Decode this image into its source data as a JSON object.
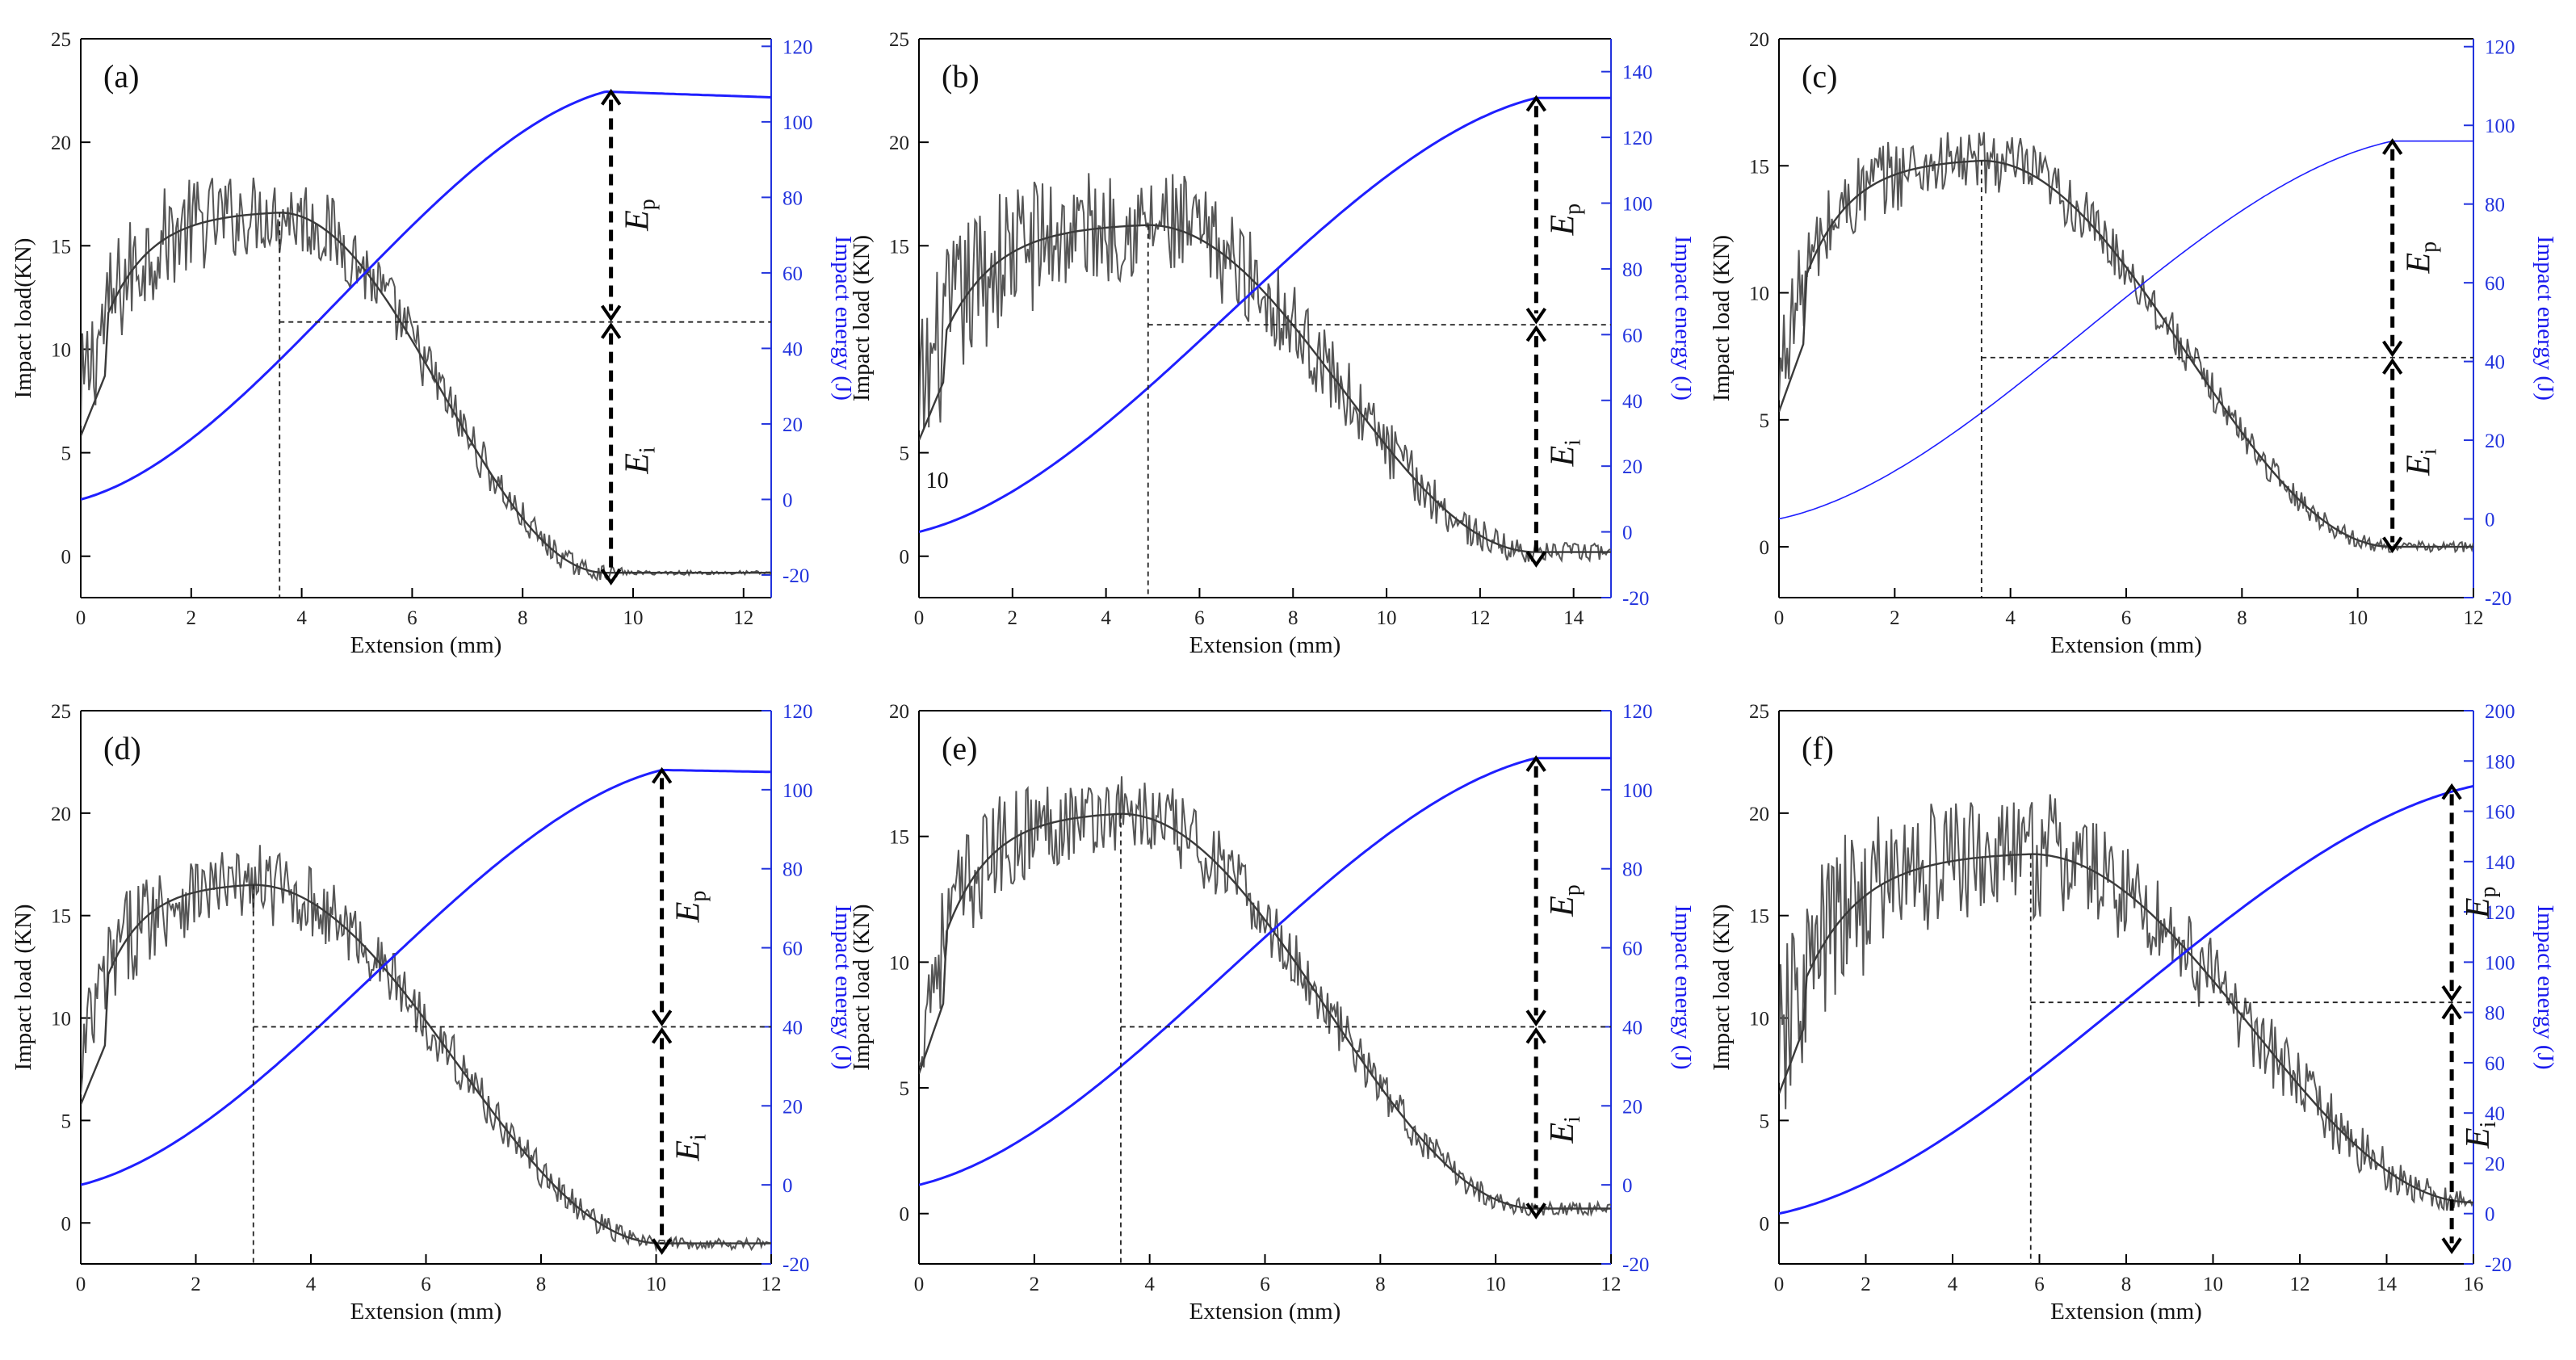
{
  "figure": {
    "xlabel": "Extension (mm)",
    "colors": {
      "load": "#555555",
      "load_fit": "#3a3a3a",
      "energy": "#1f1fff",
      "energy_right_axis": "#2233dd",
      "guide": "#222222"
    }
  },
  "chart_data": [
    {
      "type": "line",
      "panel": "(a)",
      "xlabel": "Extension (mm)",
      "ylabel_left": "Impact load(KN)",
      "ylabel_right": "Impact energy (J)",
      "xlim": [
        0,
        12.5
      ],
      "ylim_left": [
        -2,
        25
      ],
      "ylim_right": [
        -26,
        122
      ],
      "xticks": [
        0,
        2,
        4,
        6,
        8,
        10,
        12
      ],
      "yticks_left": [
        0,
        5,
        10,
        15,
        20,
        25
      ],
      "yticks_right": [
        -20,
        0,
        20,
        40,
        60,
        80,
        100,
        120
      ],
      "load_peak_x": 3.6,
      "load_peak_y": 16.6,
      "load_end": -0.8,
      "noise_amp": 2.2,
      "noise_end_x": 9.8,
      "energy_start": 0,
      "energy_max": 108,
      "energy_max_x": 9.5,
      "energy_end": 106.5,
      "energy_at_peak": 47,
      "arrow_x": 9.6,
      "arrow_mid": 47,
      "arrow_bottom": -22,
      "stray_text": "",
      "series": [
        {
          "name": "Impact load",
          "axis": "left"
        },
        {
          "name": "Impact energy",
          "axis": "right"
        }
      ],
      "annotations": [
        "E",
        "p",
        "E",
        "i"
      ]
    },
    {
      "type": "line",
      "panel": "(b)",
      "xlabel": "Extension (mm)",
      "ylabel_left": "Impact load (KN)",
      "ylabel_right": "Impact energy (J)",
      "xlim": [
        0,
        14.8
      ],
      "ylim_left": [
        -2,
        25
      ],
      "ylim_right": [
        -20,
        150
      ],
      "xticks": [
        0,
        2,
        4,
        6,
        8,
        10,
        12,
        14
      ],
      "yticks_left": [
        0,
        5,
        15,
        20,
        25
      ],
      "yticks_right": [
        -20,
        0,
        20,
        40,
        60,
        80,
        100,
        120,
        140
      ],
      "load_peak_x": 4.9,
      "load_peak_y": 16.0,
      "load_end": 0.2,
      "noise_amp": 3.0,
      "noise_end_x": 14.6,
      "energy_start": 0,
      "energy_max": 132,
      "energy_max_x": 13.2,
      "energy_end": 132,
      "energy_at_peak": 63,
      "arrow_x": 13.2,
      "arrow_mid": 63,
      "arrow_bottom": -10,
      "stray_text": "10",
      "series": [
        {
          "name": "Impact load",
          "axis": "left"
        },
        {
          "name": "Impact energy",
          "axis": "right"
        }
      ],
      "annotations": [
        "E",
        "p",
        "E",
        "i"
      ]
    },
    {
      "type": "line",
      "panel": "(c)",
      "xlabel": "Extension (mm)",
      "ylabel_left": "Impact load (KN)",
      "ylabel_right": "Impact energy (J)",
      "xlim": [
        0,
        12
      ],
      "ylim_left": [
        -2,
        20
      ],
      "ylim_right": [
        -20,
        122
      ],
      "xticks": [
        0,
        2,
        4,
        6,
        8,
        10,
        12
      ],
      "yticks_left": [
        0,
        5,
        10,
        15,
        20
      ],
      "yticks_right": [
        -20,
        0,
        20,
        40,
        60,
        80,
        100,
        120
      ],
      "load_peak_x": 3.5,
      "load_peak_y": 15.2,
      "load_end": 0.0,
      "noise_amp": 1.4,
      "noise_end_x": 12.0,
      "energy_start": 0,
      "energy_max": 96,
      "energy_max_x": 10.6,
      "energy_end": 96,
      "energy_at_peak": 41,
      "arrow_x": 10.6,
      "arrow_mid": 41,
      "arrow_bottom": -8,
      "stray_text": "",
      "series": [
        {
          "name": "Impact load",
          "axis": "left"
        },
        {
          "name": "Impact energy",
          "axis": "right"
        }
      ],
      "annotations": [
        "E",
        "p",
        "E",
        "i"
      ]
    },
    {
      "type": "line",
      "panel": "(d)",
      "xlabel": "Extension (mm)",
      "ylabel_left": "Impact load (KN)",
      "ylabel_right": "Impact energy (J)",
      "xlim": [
        0,
        12
      ],
      "ylim_left": [
        -2,
        25
      ],
      "ylim_right": [
        -20,
        120
      ],
      "xticks": [
        0,
        2,
        4,
        6,
        8,
        10,
        12
      ],
      "yticks_left": [
        0,
        5,
        10,
        15,
        20,
        25
      ],
      "yticks_right": [
        -20,
        0,
        20,
        40,
        60,
        80,
        100,
        120
      ],
      "load_peak_x": 3.0,
      "load_peak_y": 16.5,
      "load_end": -1.0,
      "noise_amp": 2.0,
      "noise_end_x": 11.9,
      "energy_start": 0,
      "energy_max": 105,
      "energy_max_x": 10.1,
      "energy_end": 104.5,
      "energy_at_peak": 40,
      "arrow_x": 10.1,
      "arrow_mid": 40,
      "arrow_bottom": -17,
      "stray_text": "",
      "series": [
        {
          "name": "Impact load",
          "axis": "left"
        },
        {
          "name": "Impact energy",
          "axis": "right"
        }
      ],
      "annotations": [
        "E",
        "p",
        "E",
        "i"
      ]
    },
    {
      "type": "line",
      "panel": "(e)",
      "xlabel": "Extension (mm)",
      "ylabel_left": "Impact load (KN)",
      "ylabel_right": "Impact energy (J)",
      "xlim": [
        0,
        12
      ],
      "ylim_left": [
        -2,
        20
      ],
      "ylim_right": [
        -20,
        120
      ],
      "xticks": [
        0,
        2,
        4,
        6,
        8,
        10,
        12
      ],
      "yticks_left": [
        0,
        5,
        10,
        15,
        20
      ],
      "yticks_right": [
        -20,
        0,
        20,
        40,
        60,
        80,
        100,
        120
      ],
      "load_peak_x": 3.5,
      "load_peak_y": 15.9,
      "load_end": 0.2,
      "noise_amp": 1.8,
      "noise_end_x": 12.0,
      "energy_start": 0,
      "energy_max": 108,
      "energy_max_x": 10.7,
      "energy_end": 108,
      "energy_at_peak": 40,
      "arrow_x": 10.7,
      "arrow_mid": 40,
      "arrow_bottom": -8,
      "stray_text": "",
      "series": [
        {
          "name": "Impact load",
          "axis": "left"
        },
        {
          "name": "Impact energy",
          "axis": "right"
        }
      ],
      "annotations": [
        "E",
        "p",
        "E",
        "i"
      ]
    },
    {
      "type": "line",
      "panel": "(f)",
      "xlabel": "Extension (mm)",
      "ylabel_left": "Impact load (KN)",
      "ylabel_right": "Impact energy (J)",
      "xlim": [
        0,
        16
      ],
      "ylim_left": [
        -2,
        25
      ],
      "ylim_right": [
        -20,
        200
      ],
      "xticks": [
        0,
        2,
        4,
        6,
        8,
        10,
        12,
        14,
        16
      ],
      "yticks_left": [
        0,
        5,
        10,
        15,
        20,
        25
      ],
      "yticks_right": [
        -20,
        0,
        20,
        40,
        60,
        80,
        100,
        120,
        140,
        160,
        180,
        200
      ],
      "load_peak_x": 5.8,
      "load_peak_y": 18.0,
      "load_end": 1.0,
      "noise_amp": 3.2,
      "noise_end_x": 15.8,
      "energy_start": 0,
      "energy_max": 170,
      "energy_max_x": 16.0,
      "energy_end": 170,
      "energy_at_peak": 84,
      "arrow_x": 15.5,
      "arrow_mid": 84,
      "arrow_bottom": -15,
      "stray_text": "",
      "series": [
        {
          "name": "Impact load",
          "axis": "left"
        },
        {
          "name": "Impact energy",
          "axis": "right"
        }
      ],
      "annotations": [
        "E",
        "p",
        "E",
        "i"
      ]
    }
  ]
}
